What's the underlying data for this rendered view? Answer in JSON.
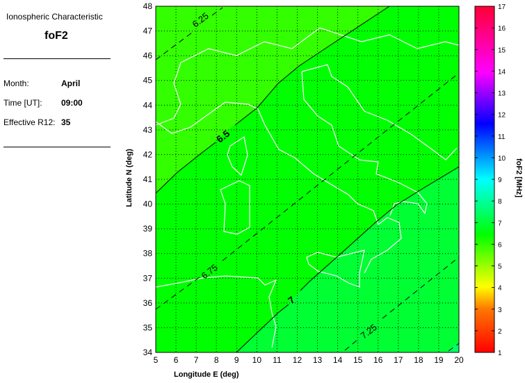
{
  "panel": {
    "heading": "Ionospheric Characteristic",
    "characteristic": "foF2",
    "month_label": "Month:",
    "month": "April",
    "time_label": "Time [UT]:",
    "time": "09:00",
    "r12_label": "Effective R12:",
    "r12": "35"
  },
  "chart_data": {
    "type": "heatmap",
    "xlabel": "Longitude E (deg)",
    "ylabel": "Latitude N (deg)",
    "xlim": [
      5,
      20
    ],
    "ylim": [
      34,
      48
    ],
    "xticks": [
      5,
      6,
      7,
      8,
      9,
      10,
      11,
      12,
      13,
      14,
      15,
      16,
      17,
      18,
      19,
      20
    ],
    "yticks": [
      34,
      35,
      36,
      37,
      38,
      39,
      40,
      41,
      42,
      43,
      44,
      45,
      46,
      47,
      48
    ],
    "grid": true,
    "colorbar": {
      "label": "foF2 [MHz]",
      "range": [
        1,
        17
      ],
      "ticks": [
        1,
        2,
        3,
        4,
        5,
        6,
        7,
        8,
        9,
        10,
        11,
        12,
        13,
        14,
        15,
        16,
        17
      ]
    },
    "contours": [
      {
        "level": "6.25",
        "style": "dashed"
      },
      {
        "level": "6.5",
        "style": "solid"
      },
      {
        "level": "6.75",
        "style": "dashed"
      },
      {
        "level": "7",
        "style": "solid"
      },
      {
        "level": "7.25",
        "style": "dashed"
      }
    ],
    "band_colors": {
      "below_6.5": "#33ff00",
      "6.5_7": "#00ff00",
      "7_7.5": "#00ff33",
      "above_7.5": "#00ff66"
    }
  }
}
